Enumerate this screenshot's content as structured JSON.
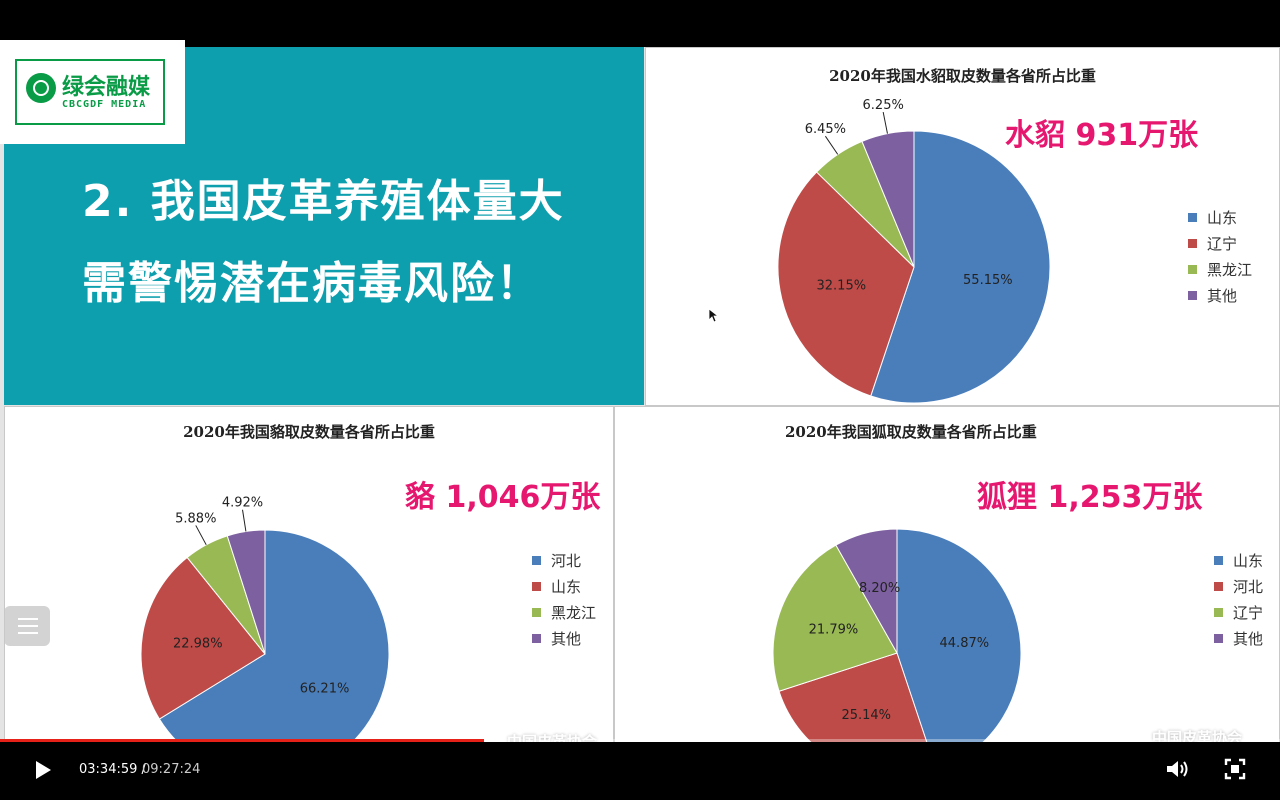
{
  "headline": {
    "line1": "2. 我国皮革养殖体量大",
    "line2": "需警惕潜在病毒风险！"
  },
  "logo": {
    "cn": "绿会融媒",
    "en": "CBCGDF MEDIA",
    "color": "#0a9b47"
  },
  "watermark": "中国皮革协会",
  "player": {
    "current_time": "03:34:59 /",
    "duration": "09:27:24",
    "progress": 0.378
  },
  "colors": {
    "blue": "#4a7ebb",
    "red": "#be4b48",
    "green": "#98b954",
    "purple": "#7d60a0",
    "accent": "#e5176f",
    "teal": "#0d9fae"
  },
  "chart_data": [
    {
      "type": "pie",
      "title": "2020年我国水貂取皮数量各省所占比重",
      "total_label": "水貂 931万张",
      "categories": [
        "山东",
        "辽宁",
        "黑龙江",
        "其他"
      ],
      "values": [
        55.15,
        32.15,
        6.45,
        6.25
      ],
      "labels": [
        "55.15%",
        "32.15%",
        "6.45%",
        "6.25%"
      ],
      "colors": [
        "#4a7ebb",
        "#be4b48",
        "#98b954",
        "#7d60a0"
      ],
      "legend": "right"
    },
    {
      "type": "pie",
      "title": "2020年我国貉取皮数量各省所占比重",
      "total_label": "貉 1,046万张",
      "categories": [
        "河北",
        "山东",
        "黑龙江",
        "其他"
      ],
      "values": [
        66.21,
        22.98,
        5.88,
        4.92
      ],
      "labels": [
        "66.21%",
        "22.98%",
        "5.88%",
        "4.92%"
      ],
      "colors": [
        "#4a7ebb",
        "#be4b48",
        "#98b954",
        "#7d60a0"
      ],
      "legend": "right"
    },
    {
      "type": "pie",
      "title": "2020年我国狐取皮数量各省所占比重",
      "total_label": "狐狸 1,253万张",
      "categories": [
        "山东",
        "河北",
        "辽宁",
        "其他"
      ],
      "values": [
        44.87,
        25.14,
        21.79,
        8.2
      ],
      "labels": [
        "44.87%",
        "25.14%",
        "21.79%",
        "8.20%"
      ],
      "colors": [
        "#4a7ebb",
        "#be4b48",
        "#98b954",
        "#7d60a0"
      ],
      "legend": "right"
    }
  ]
}
